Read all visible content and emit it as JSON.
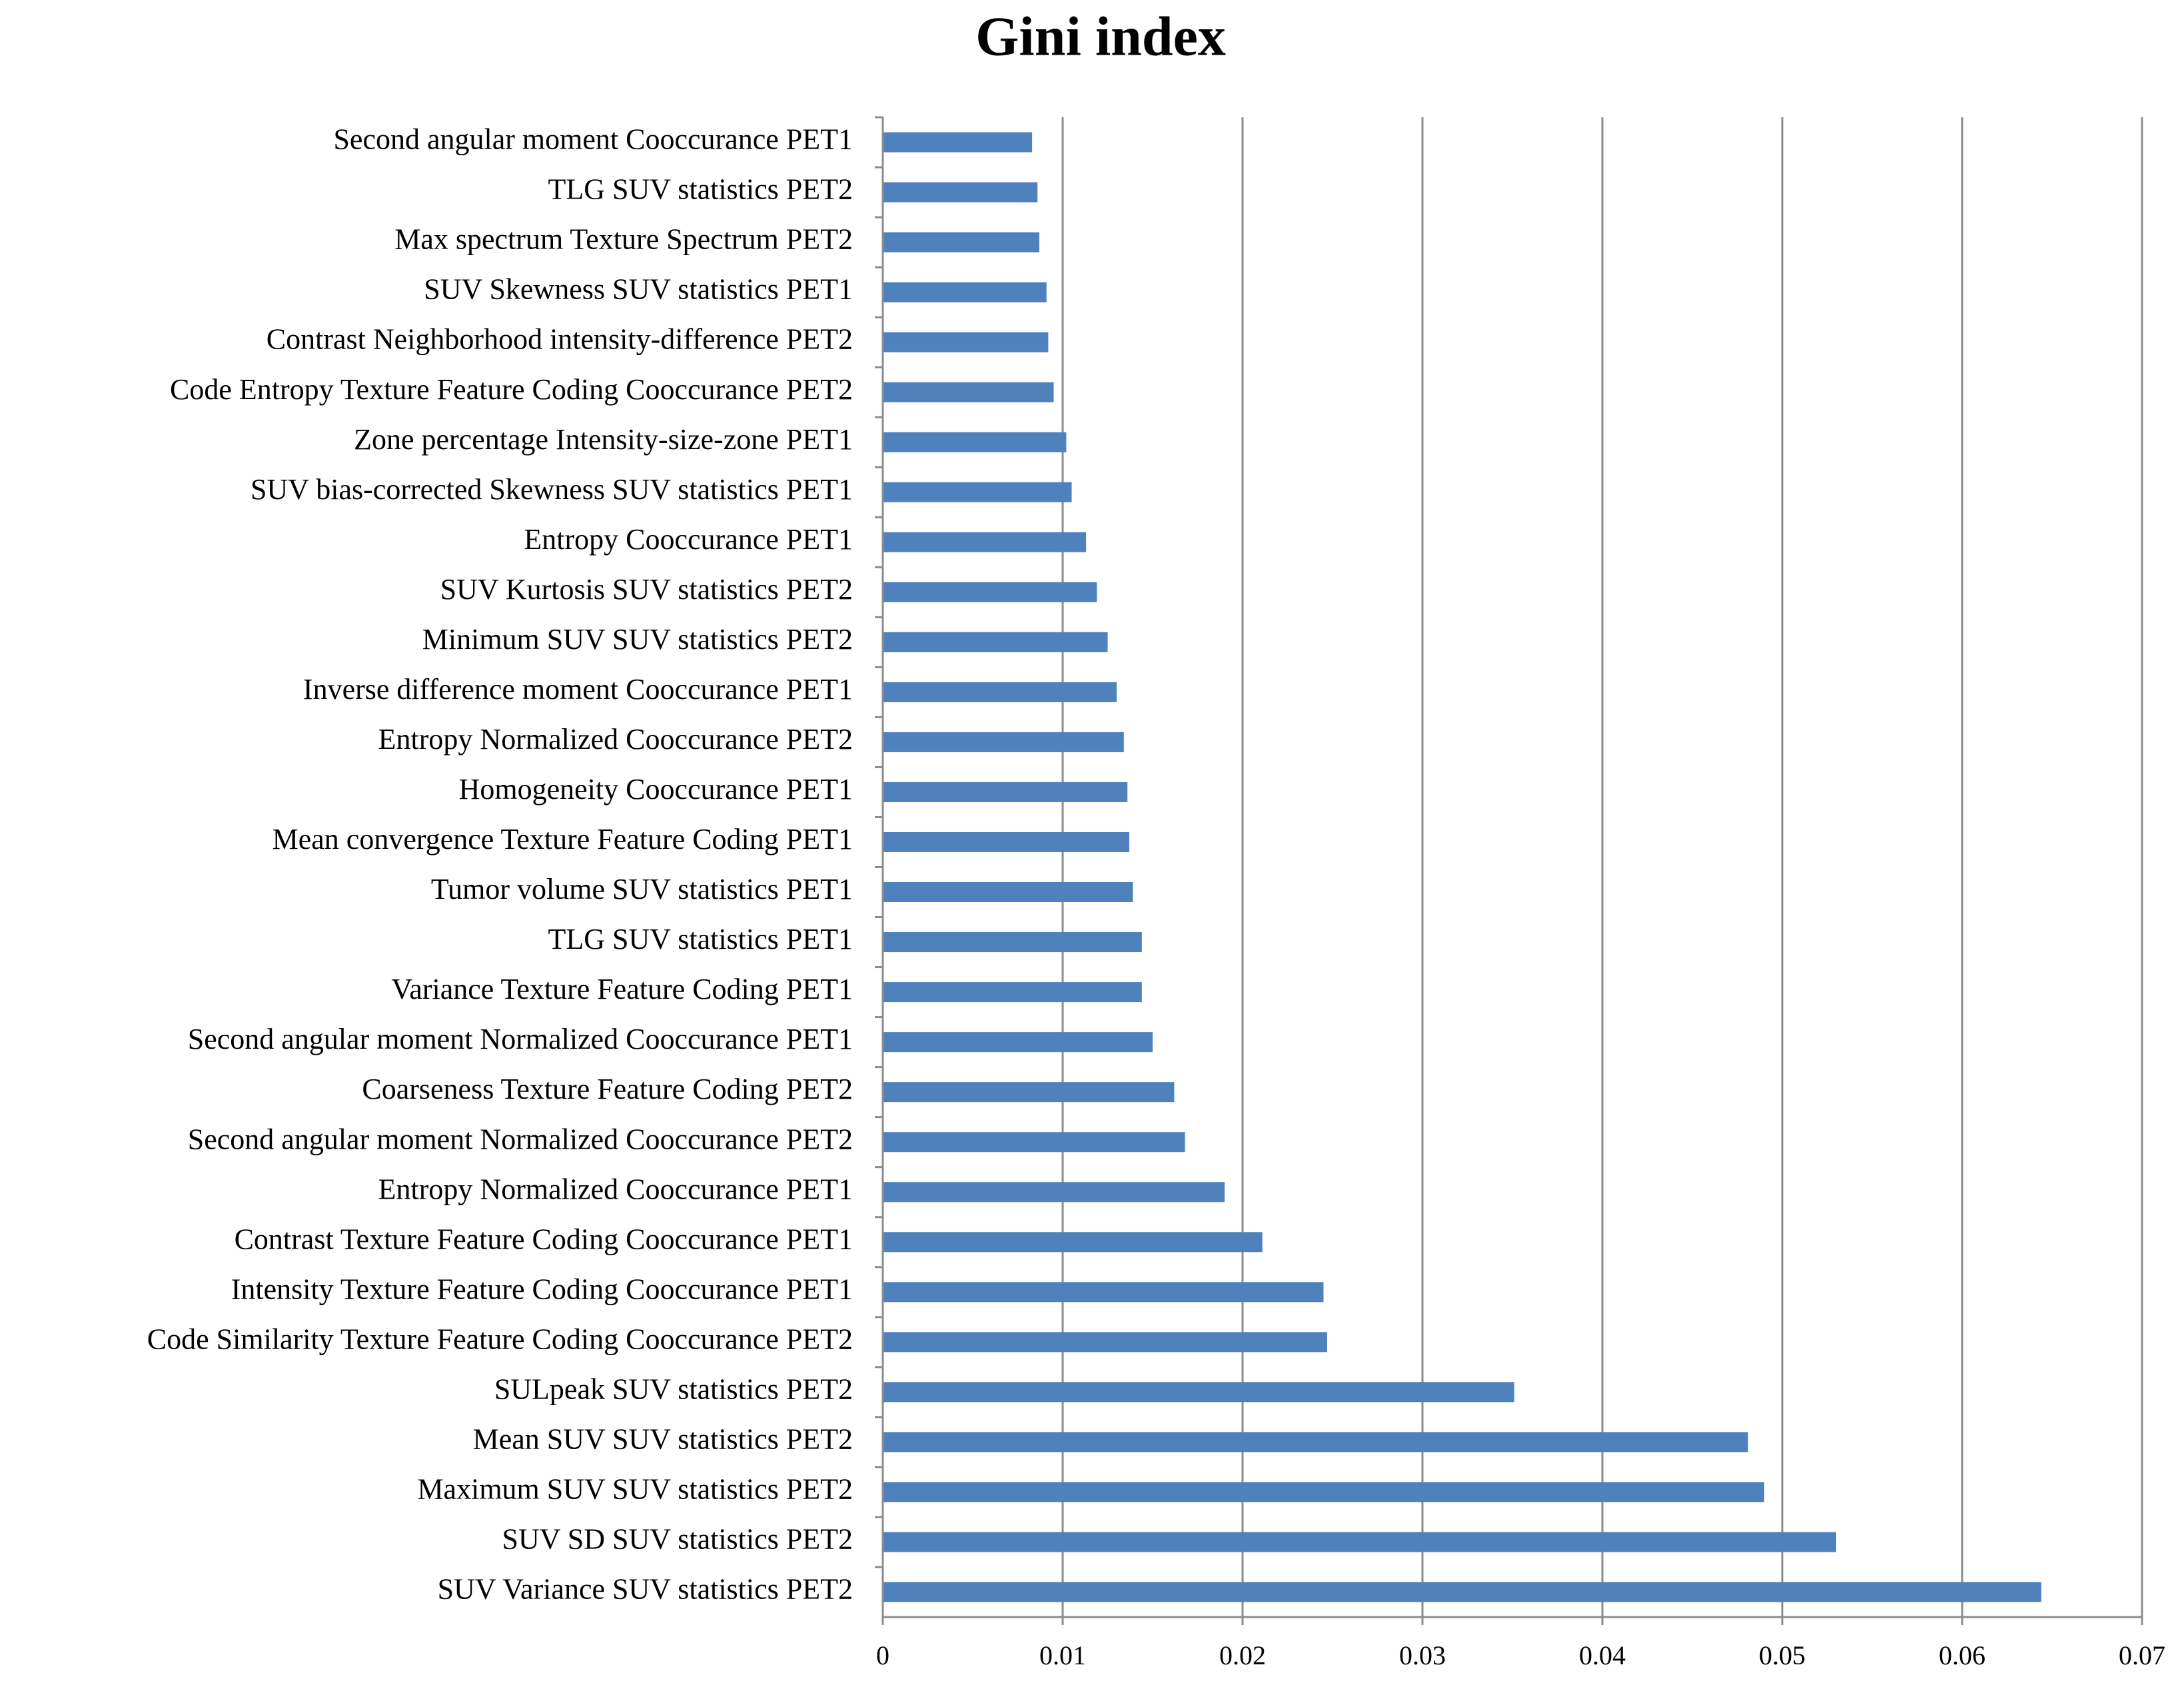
{
  "chart_data": {
    "type": "barh",
    "title": "Gini index",
    "categories": [
      "Second angular moment Cooccurance PET1",
      "TLG SUV statistics PET2",
      "Max spectrum Texture Spectrum PET2",
      "SUV Skewness SUV statistics PET1",
      "Contrast Neighborhood intensity-difference PET2",
      "Code Entropy Texture Feature Coding Cooccurance PET2",
      "Zone percentage Intensity-size-zone PET1",
      "SUV bias-corrected Skewness SUV statistics PET1",
      "Entropy Cooccurance PET1",
      "SUV Kurtosis SUV statistics PET2",
      "Minimum SUV SUV statistics PET2",
      "Inverse difference moment Cooccurance PET1",
      "Entropy Normalized Cooccurance PET2",
      "Homogeneity Cooccurance PET1",
      "Mean convergence Texture Feature Coding PET1",
      "Tumor volume SUV statistics PET1",
      "TLG SUV statistics PET1",
      "Variance Texture Feature Coding PET1",
      "Second angular moment Normalized Cooccurance PET1",
      "Coarseness Texture Feature Coding PET2",
      "Second angular moment Normalized Cooccurance PET2",
      "Entropy Normalized Cooccurance PET1",
      "Contrast Texture Feature Coding Cooccurance PET1",
      "Intensity Texture Feature Coding Cooccurance PET1",
      "Code Similarity Texture Feature Coding Cooccurance PET2",
      "SULpeak SUV statistics PET2",
      "Mean SUV SUV statistics PET2",
      "Maximum SUV SUV statistics PET2",
      "SUV SD SUV statistics PET2",
      "SUV Variance SUV statistics PET2"
    ],
    "values": [
      0.0083,
      0.0086,
      0.0087,
      0.0091,
      0.0092,
      0.0095,
      0.0102,
      0.0105,
      0.0113,
      0.0119,
      0.0125,
      0.013,
      0.0134,
      0.0136,
      0.0137,
      0.0139,
      0.0144,
      0.0144,
      0.015,
      0.0162,
      0.0168,
      0.019,
      0.0211,
      0.0245,
      0.0247,
      0.0351,
      0.0481,
      0.049,
      0.053,
      0.0644
    ],
    "color": "#4f81bd",
    "xlim": [
      0,
      0.07
    ],
    "xticks": [
      0,
      0.01,
      0.02,
      0.03,
      0.04,
      0.05,
      0.06,
      0.07
    ],
    "grid": true
  }
}
